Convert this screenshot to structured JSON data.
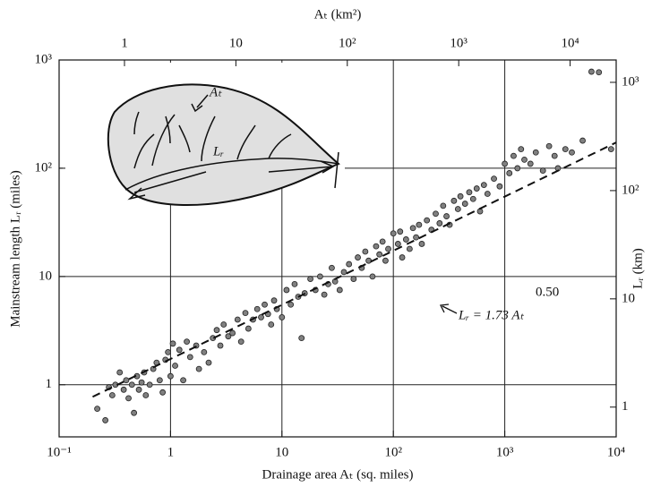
{
  "chart_data": {
    "type": "scatter",
    "x_label": "Drainage area Aₜ (sq. miles)",
    "y_label": "Mainstream length Lᵣ (miles)",
    "x2_label": "Aₜ (km²)",
    "y2_label": "Lᵣ (km)",
    "log_x": true,
    "log_y": true,
    "grid": true,
    "xlim": [
      0.1,
      10000
    ],
    "xticks": [
      {
        "value": 0.1,
        "label": "10⁻¹"
      },
      1,
      10,
      {
        "value": 100,
        "label": "10²"
      },
      {
        "value": 1000,
        "label": "10³"
      },
      {
        "value": 10000,
        "label": "10⁴"
      }
    ],
    "ylim": [
      0.33,
      1000
    ],
    "yticks": [
      1,
      10,
      {
        "value": 100,
        "label": "10²"
      },
      {
        "value": 1000,
        "label": "10³"
      }
    ],
    "x2lim": [
      0.259,
      25900
    ],
    "x2ticks": [
      1,
      10,
      {
        "value": 100,
        "label": "10²"
      },
      {
        "value": 1000,
        "label": "10³"
      },
      {
        "value": 10000,
        "label": "10⁴"
      }
    ],
    "y2lim": [
      0.531,
      1609
    ],
    "y2ticks": [
      1,
      10,
      {
        "value": 100,
        "label": "10²"
      },
      {
        "value": 1000,
        "label": "10³"
      }
    ],
    "marker_color": "#808080",
    "x": [
      0.22,
      0.26,
      0.28,
      0.3,
      0.32,
      0.35,
      0.38,
      0.4,
      0.42,
      0.45,
      0.47,
      0.5,
      0.52,
      0.55,
      0.58,
      0.6,
      0.65,
      0.7,
      0.75,
      0.8,
      0.85,
      0.9,
      0.95,
      1.0,
      1.05,
      1.1,
      1.2,
      1.3,
      1.4,
      1.5,
      1.7,
      1.8,
      2.0,
      2.2,
      2.4,
      2.6,
      2.8,
      3.0,
      3.3,
      3.6,
      4.0,
      4.3,
      4.7,
      5.0,
      5.5,
      6.0,
      6.5,
      7.0,
      7.5,
      8.0,
      8.5,
      9.0,
      10,
      11,
      12,
      13,
      14,
      15,
      16,
      18,
      20,
      22,
      24,
      26,
      28,
      30,
      33,
      36,
      40,
      44,
      48,
      52,
      56,
      60,
      65,
      70,
      75,
      80,
      85,
      90,
      100,
      110,
      115,
      120,
      130,
      140,
      150,
      160,
      170,
      180,
      200,
      220,
      240,
      260,
      280,
      300,
      320,
      350,
      380,
      400,
      440,
      480,
      520,
      560,
      600,
      650,
      700,
      800,
      900,
      1000,
      1100,
      1200,
      1300,
      1400,
      1500,
      1700,
      1900,
      2200,
      2500,
      2800,
      3000,
      3500,
      4000,
      5000,
      6000,
      7000,
      9000
    ],
    "values": [
      0.6,
      0.47,
      0.95,
      0.8,
      1.0,
      1.3,
      0.9,
      1.1,
      0.75,
      1.0,
      0.55,
      1.2,
      0.9,
      1.05,
      1.3,
      0.8,
      1.0,
      1.4,
      1.6,
      1.1,
      0.85,
      1.7,
      2.0,
      1.2,
      2.4,
      1.5,
      2.1,
      1.1,
      2.5,
      1.8,
      2.3,
      1.4,
      2.0,
      1.6,
      2.7,
      3.2,
      2.3,
      3.6,
      2.8,
      3.0,
      4.0,
      2.5,
      4.6,
      3.3,
      4.0,
      5.0,
      4.2,
      5.5,
      4.5,
      3.6,
      6.0,
      5.0,
      4.2,
      7.5,
      5.5,
      8.5,
      6.5,
      2.7,
      7.0,
      9.5,
      7.5,
      10,
      6.8,
      8.5,
      12,
      9,
      7.5,
      11,
      13,
      9.5,
      15,
      12,
      17,
      14,
      10,
      19,
      16,
      21,
      14,
      18,
      25,
      20,
      26,
      15,
      22,
      18,
      28,
      23,
      30,
      20,
      33,
      27,
      38,
      31,
      45,
      36,
      30,
      50,
      42,
      55,
      47,
      60,
      52,
      65,
      40,
      70,
      58,
      80,
      68,
      110,
      90,
      130,
      100,
      150,
      120,
      110,
      140,
      95,
      160,
      130,
      100,
      150,
      140,
      180,
      780,
      770,
      150
    ],
    "fit": {
      "coefficient": 1.73,
      "exponent": 0.5,
      "x": [
        0.2,
        10000
      ]
    },
    "annotations": {
      "equation": "Lᵣ = 1.73 Aₜ",
      "equation_exponent": "0.50",
      "area": "Aₜ",
      "length": "Lᵣ"
    }
  }
}
